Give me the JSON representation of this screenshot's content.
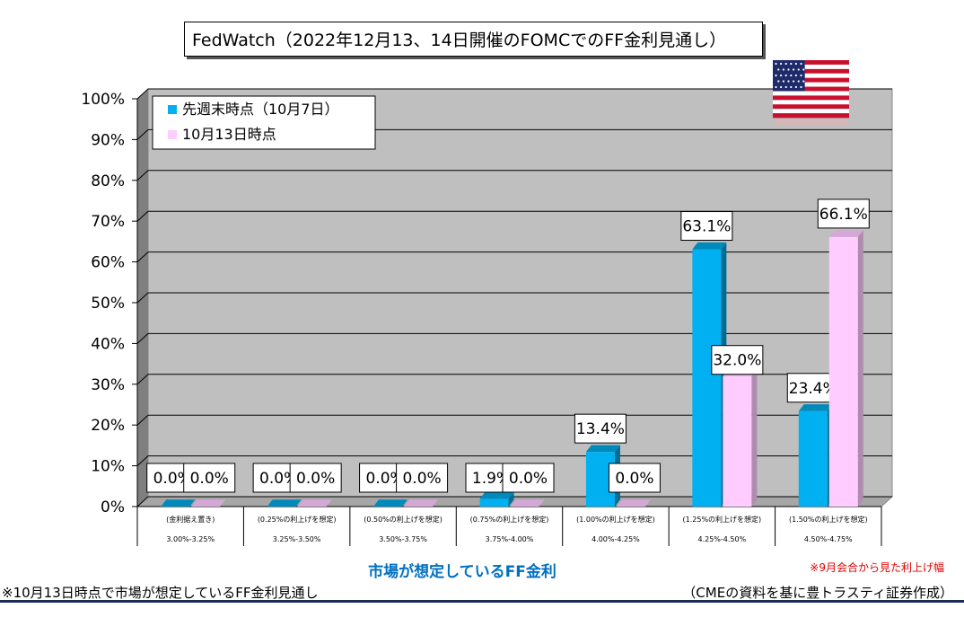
{
  "title": "FedWatch（2022年12月13、14日開催のFOMCでのFF金利見通し）",
  "flag_icon": "us-flag-icon",
  "footnote_left": "※10月13日時点で市場が想定しているFF金利見通し",
  "source": "（CMEの資料を基に豊トラスティ証券作成）",
  "note_right": "※9月会合から見た利上げ幅",
  "chart_data": {
    "type": "bar",
    "title": "FedWatch（2022年12月13、14日開催のFOMCでのFF金利見通し）",
    "xlabel": "市場が想定しているFF金利",
    "ylabel": "",
    "ylim": [
      0,
      100
    ],
    "yticks": [
      "0%",
      "10%",
      "20%",
      "30%",
      "40%",
      "50%",
      "60%",
      "70%",
      "80%",
      "90%",
      "100%"
    ],
    "grid": true,
    "legend_position": "top-left",
    "categories": [
      {
        "top": "(金利据え置き)",
        "bottom": "3.00%-3.25%"
      },
      {
        "top": "(0.25%の利上げを想定)",
        "bottom": "3.25%-3.50%"
      },
      {
        "top": "(0.50%の利上げを想定)",
        "bottom": "3.50%-3.75%"
      },
      {
        "top": "(0.75%の利上げを想定)",
        "bottom": "3.75%-4.00%"
      },
      {
        "top": "(1.00%の利上げを想定)",
        "bottom": "4.00%-4.25%"
      },
      {
        "top": "(1.25%の利上げを想定)",
        "bottom": "4.25%-4.50%"
      },
      {
        "top": "(1.50%の利上げを想定)",
        "bottom": "4.50%-4.75%"
      }
    ],
    "series": [
      {
        "name": "先週末時点（10月7日）",
        "color": "#00b0f0",
        "values": [
          0.0,
          0.0,
          0.0,
          1.9,
          13.4,
          63.1,
          23.4
        ],
        "labels": [
          "0.0%",
          "0.0%",
          "0.0%",
          "1.9%",
          "13.4%",
          "63.1%",
          "23.4%"
        ]
      },
      {
        "name": "10月13日時点",
        "color": "#ffccff",
        "values": [
          0.0,
          0.0,
          0.0,
          0.0,
          0.0,
          32.0,
          66.1
        ],
        "labels": [
          "0.0%",
          "0.0%",
          "0.0%",
          "0.0%",
          "0.0%",
          "32.0%",
          "66.1%"
        ]
      }
    ]
  }
}
